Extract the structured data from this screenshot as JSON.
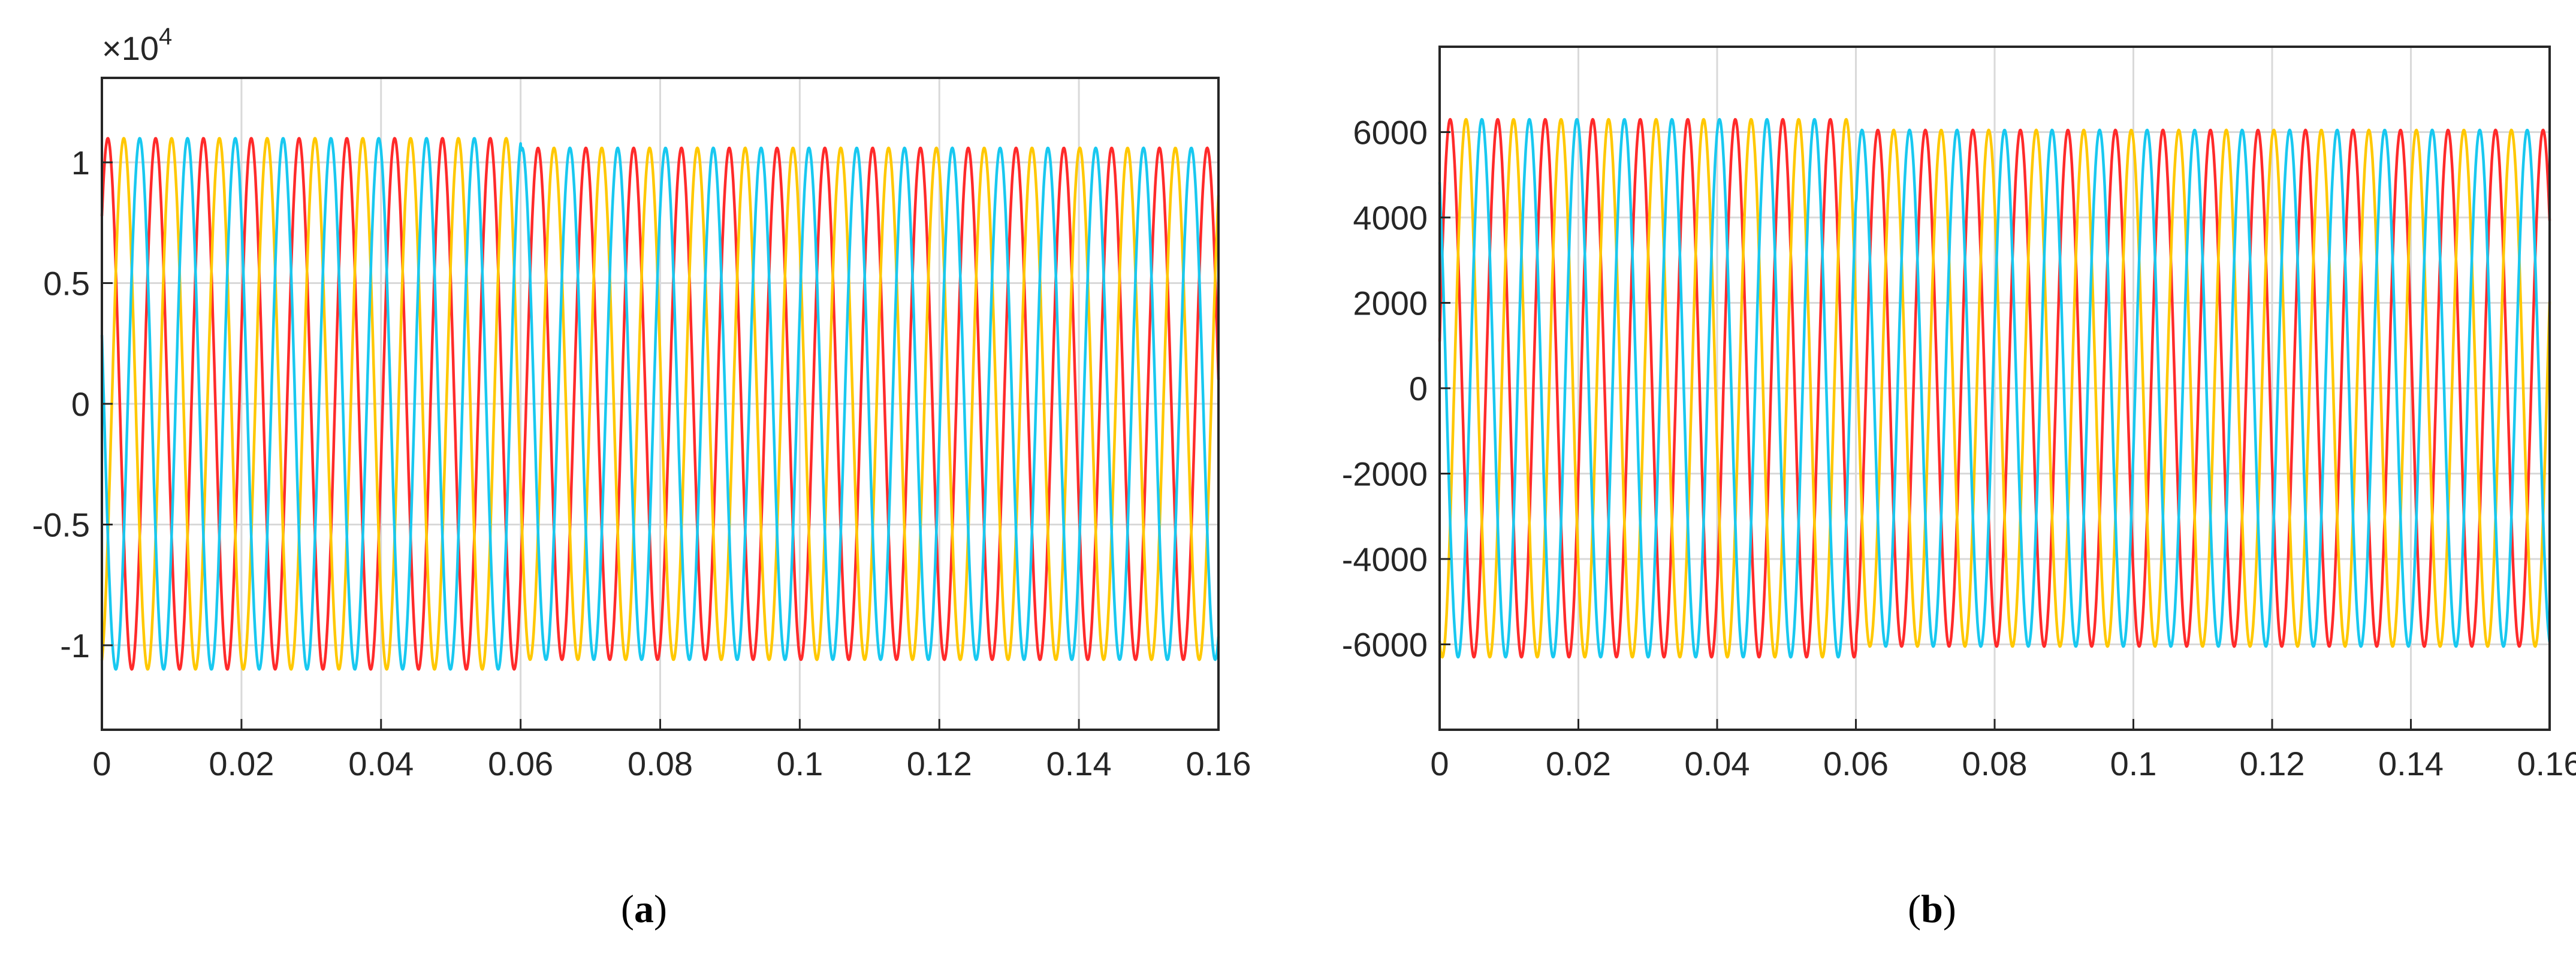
{
  "chart_data": [
    {
      "type": "line",
      "panel_label": "a",
      "x_range": [
        0,
        0.16
      ],
      "y_range": [
        -13500,
        13500
      ],
      "x_ticks": [
        0,
        0.02,
        0.04,
        0.06,
        0.08,
        0.1,
        0.12,
        0.14,
        0.16
      ],
      "x_tick_labels": [
        "0",
        "0.02",
        "0.04",
        "0.06",
        "0.08",
        "0.1",
        "0.12",
        "0.14",
        "0.16"
      ],
      "y_ticks": [
        -10000,
        -5000,
        0,
        5000,
        10000
      ],
      "y_tick_labels": [
        "-1",
        "-0.5",
        "0",
        "0.5",
        "1"
      ],
      "y_exponent_label": {
        "base": "×10",
        "power": "4"
      },
      "grid": true,
      "legend": "none",
      "frequency_hz": 146,
      "segments": [
        {
          "x_start": 0,
          "x_end": 0.06,
          "amplitude": 11000
        },
        {
          "x_start": 0.06,
          "x_end": 0.16,
          "amplitude": 10600
        }
      ],
      "series": [
        {
          "color": "#ff2a2a",
          "phase_deg": 45
        },
        {
          "color": "#ffc800",
          "phase_deg": -75
        },
        {
          "color": "#18c8f0",
          "phase_deg": 165
        }
      ]
    },
    {
      "type": "line",
      "panel_label": "b",
      "x_range": [
        0,
        0.16
      ],
      "y_range": [
        -8000,
        8000
      ],
      "x_ticks": [
        0,
        0.02,
        0.04,
        0.06,
        0.08,
        0.1,
        0.12,
        0.14,
        0.16
      ],
      "x_tick_labels": [
        "0",
        "0.02",
        "0.04",
        "0.06",
        "0.08",
        "0.1",
        "0.12",
        "0.14",
        "0.16"
      ],
      "y_ticks": [
        -6000,
        -4000,
        -2000,
        0,
        2000,
        4000,
        6000
      ],
      "y_tick_labels": [
        "-6000",
        "-4000",
        "-2000",
        "0",
        "2000",
        "4000",
        "6000"
      ],
      "grid": true,
      "legend": "none",
      "frequency_hz": 146,
      "segments": [
        {
          "x_start": 0,
          "x_end": 0.06,
          "amplitude": 6300
        },
        {
          "x_start": 0.06,
          "x_end": 0.16,
          "amplitude": 6050
        }
      ],
      "series": [
        {
          "color": "#ff2a2a",
          "phase_deg": 10
        },
        {
          "color": "#ffc800",
          "phase_deg": -110
        },
        {
          "color": "#18c8f0",
          "phase_deg": 130
        }
      ]
    }
  ],
  "captions": [
    {
      "open": "(",
      "label": "a",
      "close": ")"
    },
    {
      "open": "(",
      "label": "b",
      "close": ")"
    }
  ]
}
